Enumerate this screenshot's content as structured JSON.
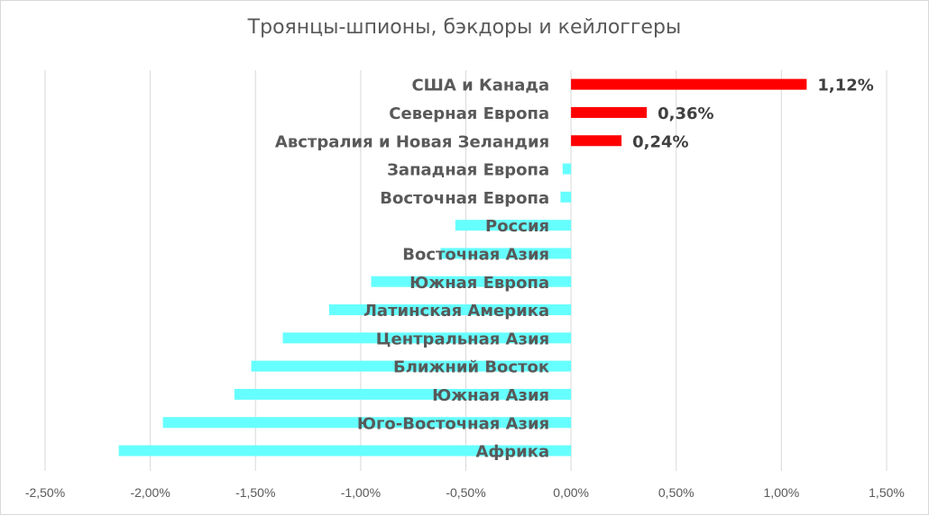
{
  "chart_data": {
    "type": "bar",
    "orientation": "horizontal",
    "title": "Троянцы-шпионы, бэкдоры и кейлоггеры",
    "xlim": [
      -0.025,
      0.015
    ],
    "x_ticks": [
      -0.025,
      -0.02,
      -0.015,
      -0.01,
      -0.005,
      0,
      0.005,
      0.01,
      0.015
    ],
    "x_tick_labels": [
      "-2,50%",
      "-2,00%",
      "-1,50%",
      "-1,00%",
      "-0,50%",
      "0,00%",
      "0,50%",
      "1,00%",
      "1,50%"
    ],
    "grid": true,
    "legend": "none",
    "colors": {
      "positive": "#ff0000",
      "negative": "#66ffff",
      "grid": "#d9d9d9"
    },
    "categories": [
      "США и Канада",
      "Северная Европа",
      "Австралия и Новая Зеландия",
      "Западная Европа",
      "Восточная Европа",
      "Россия",
      "Восточная Азия",
      "Южная Европа",
      "Латинская Америка",
      "Центральная Азия",
      "Ближний Восток",
      "Южная Азия",
      "Юго-Восточная Азия",
      "Африка"
    ],
    "values": [
      0.0112,
      0.0036,
      0.0024,
      -0.0004,
      -0.0005,
      -0.0055,
      -0.0062,
      -0.0095,
      -0.0115,
      -0.0137,
      -0.0152,
      -0.016,
      -0.0194,
      -0.0215
    ],
    "data_labels": [
      "1,12%",
      "0,36%",
      "0,24%",
      "",
      "",
      "",
      "",
      "",
      "",
      "",
      "",
      "",
      "",
      ""
    ]
  }
}
